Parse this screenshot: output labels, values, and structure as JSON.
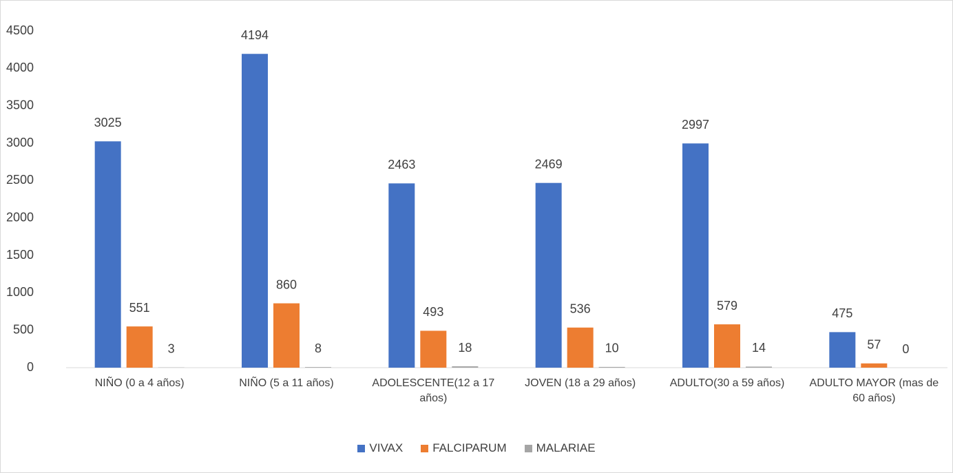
{
  "chart_data": {
    "type": "bar",
    "categories": [
      "NIÑO (0 a 4 años)",
      "NIÑO (5 a 11 años)",
      "ADOLESCENTE(12 a 17 años)",
      "JOVEN (18 a 29 años)",
      "ADULTO(30 a 59 años)",
      "ADULTO MAYOR (mas de 60 años)"
    ],
    "series": [
      {
        "name": "VIVAX",
        "color": "#4472c4",
        "values": [
          3025,
          4194,
          2463,
          2469,
          2997,
          475
        ]
      },
      {
        "name": "FALCIPARUM",
        "color": "#ed7d31",
        "values": [
          551,
          860,
          493,
          536,
          579,
          57
        ]
      },
      {
        "name": "MALARIAE",
        "color": "#a5a5a5",
        "values": [
          3,
          8,
          18,
          10,
          14,
          0
        ]
      }
    ],
    "ylim": [
      0,
      4500
    ],
    "yticks": [
      0,
      500,
      1000,
      1500,
      2000,
      2500,
      3000,
      3500,
      4000,
      4500
    ],
    "grid": false,
    "legend": "bottom"
  }
}
